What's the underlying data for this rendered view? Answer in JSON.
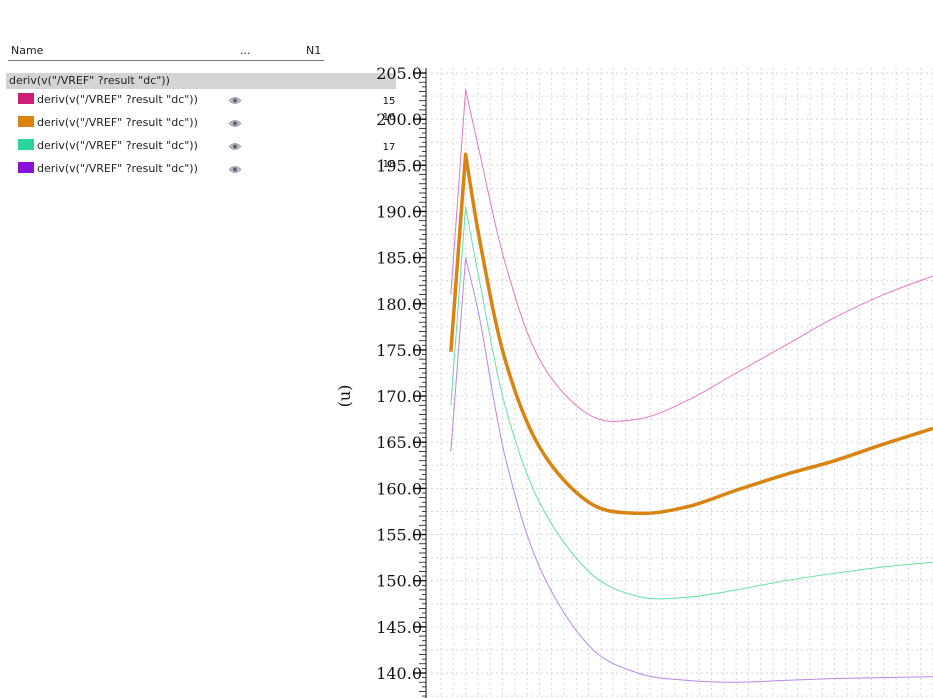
{
  "browser": {
    "columns": {
      "name": "Name",
      "dots": "...",
      "n1": "N1"
    },
    "group_label": "deriv(v(\"/VREF\" ?result \"dc\"))",
    "traces": [
      {
        "label": "deriv(v(\"/VREF\" ?result \"dc\"))",
        "color": "#cc1f7a"
      },
      {
        "label": "deriv(v(\"/VREF\" ?result \"dc\"))",
        "color": "#d98310"
      },
      {
        "label": "deriv(v(\"/VREF\" ?result \"dc\"))",
        "color": "#2ad39a"
      },
      {
        "label": "deriv(v(\"/VREF\" ?result \"dc\"))",
        "color": "#8a12d8"
      }
    ]
  },
  "chart_data": {
    "type": "line",
    "title": "",
    "xlabel": "",
    "ylabel": "(u)",
    "ylim": [
      137.5,
      205
    ],
    "xlim": [
      0,
      100
    ],
    "y_ticks": [
      205.0,
      200.0,
      195.0,
      190.0,
      185.0,
      180.0,
      175.0,
      170.0,
      165.0,
      160.0,
      155.0,
      150.0,
      145.0,
      140.0
    ],
    "y_tick_labels": [
      "205.0",
      "200.0",
      "195.0",
      "190.0",
      "185.0",
      "180.0",
      "175.0",
      "170.0",
      "165.0",
      "160.0",
      "155.0",
      "150.0",
      "145.0",
      "140.0"
    ],
    "trace_labels": [
      "15",
      "16",
      "17",
      "18"
    ],
    "grid": true,
    "series": [
      {
        "color": "#e477c9",
        "width": 1,
        "x": [
          2,
          5,
          8,
          13,
          20,
          30,
          40,
          50,
          60,
          70,
          80,
          90,
          100
        ],
        "y": [
          181.0,
          203.2,
          196.0,
          184.5,
          174.0,
          168.0,
          167.5,
          169.5,
          172.5,
          175.5,
          178.5,
          181.0,
          183.0
        ]
      },
      {
        "color": "#d98310",
        "width": 3.5,
        "x": [
          2,
          5,
          8,
          13,
          20,
          30,
          40,
          50,
          60,
          70,
          80,
          90,
          100
        ],
        "y": [
          174.8,
          196.2,
          186.5,
          174.0,
          164.5,
          158.5,
          157.3,
          158.0,
          159.8,
          161.5,
          163.0,
          164.8,
          166.5
        ]
      },
      {
        "color": "#65dfa7",
        "width": 1,
        "x": [
          2,
          5,
          8,
          13,
          20,
          30,
          40,
          50,
          60,
          70,
          80,
          90,
          100
        ],
        "y": [
          169.0,
          190.5,
          182.0,
          169.0,
          158.5,
          151.0,
          148.3,
          148.2,
          149.0,
          150.0,
          150.8,
          151.5,
          152.0
        ]
      },
      {
        "color": "#b887e6",
        "width": 1,
        "x": [
          2,
          5,
          8,
          13,
          20,
          30,
          40,
          50,
          60,
          70,
          80,
          90,
          100
        ],
        "y": [
          164.0,
          185.0,
          178.0,
          163.5,
          151.5,
          143.0,
          140.0,
          139.2,
          139.0,
          139.2,
          139.4,
          139.5,
          139.6
        ]
      }
    ]
  }
}
